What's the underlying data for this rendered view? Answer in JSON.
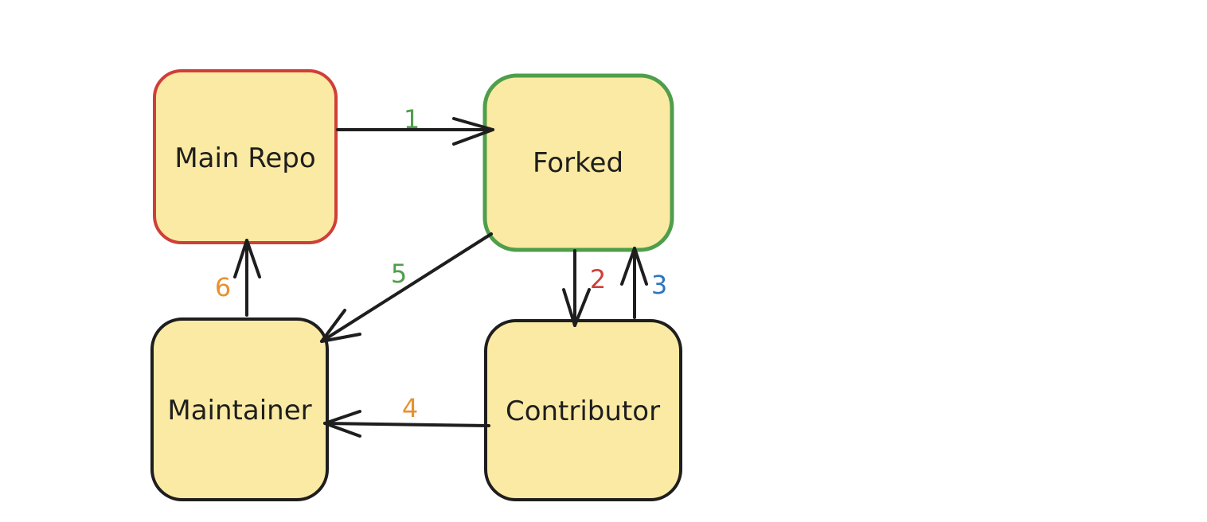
{
  "diagram": {
    "nodes": [
      {
        "id": "main-repo",
        "label": "Main Repo",
        "fill": "#fbeaa3",
        "stroke": "#cf3f38"
      },
      {
        "id": "forked",
        "label": "Forked",
        "fill": "#fbeaa3",
        "stroke": "#4f9e4b"
      },
      {
        "id": "maintainer",
        "label": "Maintainer",
        "fill": "#fbeaa3",
        "stroke": "#1e1e1e"
      },
      {
        "id": "contributor",
        "label": "Contributor",
        "fill": "#fbeaa3",
        "stroke": "#1e1e1e"
      }
    ],
    "edges": [
      {
        "id": "edge-1",
        "from": "main-repo",
        "to": "forked",
        "label": "1",
        "label_color": "#4f9e4b"
      },
      {
        "id": "edge-2",
        "from": "forked",
        "to": "contributor",
        "label": "2",
        "label_color": "#cf3f38"
      },
      {
        "id": "edge-3",
        "from": "contributor",
        "to": "forked",
        "label": "3",
        "label_color": "#2f74c0"
      },
      {
        "id": "edge-4",
        "from": "contributor",
        "to": "maintainer",
        "label": "4",
        "label_color": "#e8912d"
      },
      {
        "id": "edge-5",
        "from": "forked",
        "to": "maintainer",
        "label": "5",
        "label_color": "#4f9e4b"
      },
      {
        "id": "edge-6",
        "from": "maintainer",
        "to": "main-repo",
        "label": "6",
        "label_color": "#e8912d"
      }
    ]
  }
}
